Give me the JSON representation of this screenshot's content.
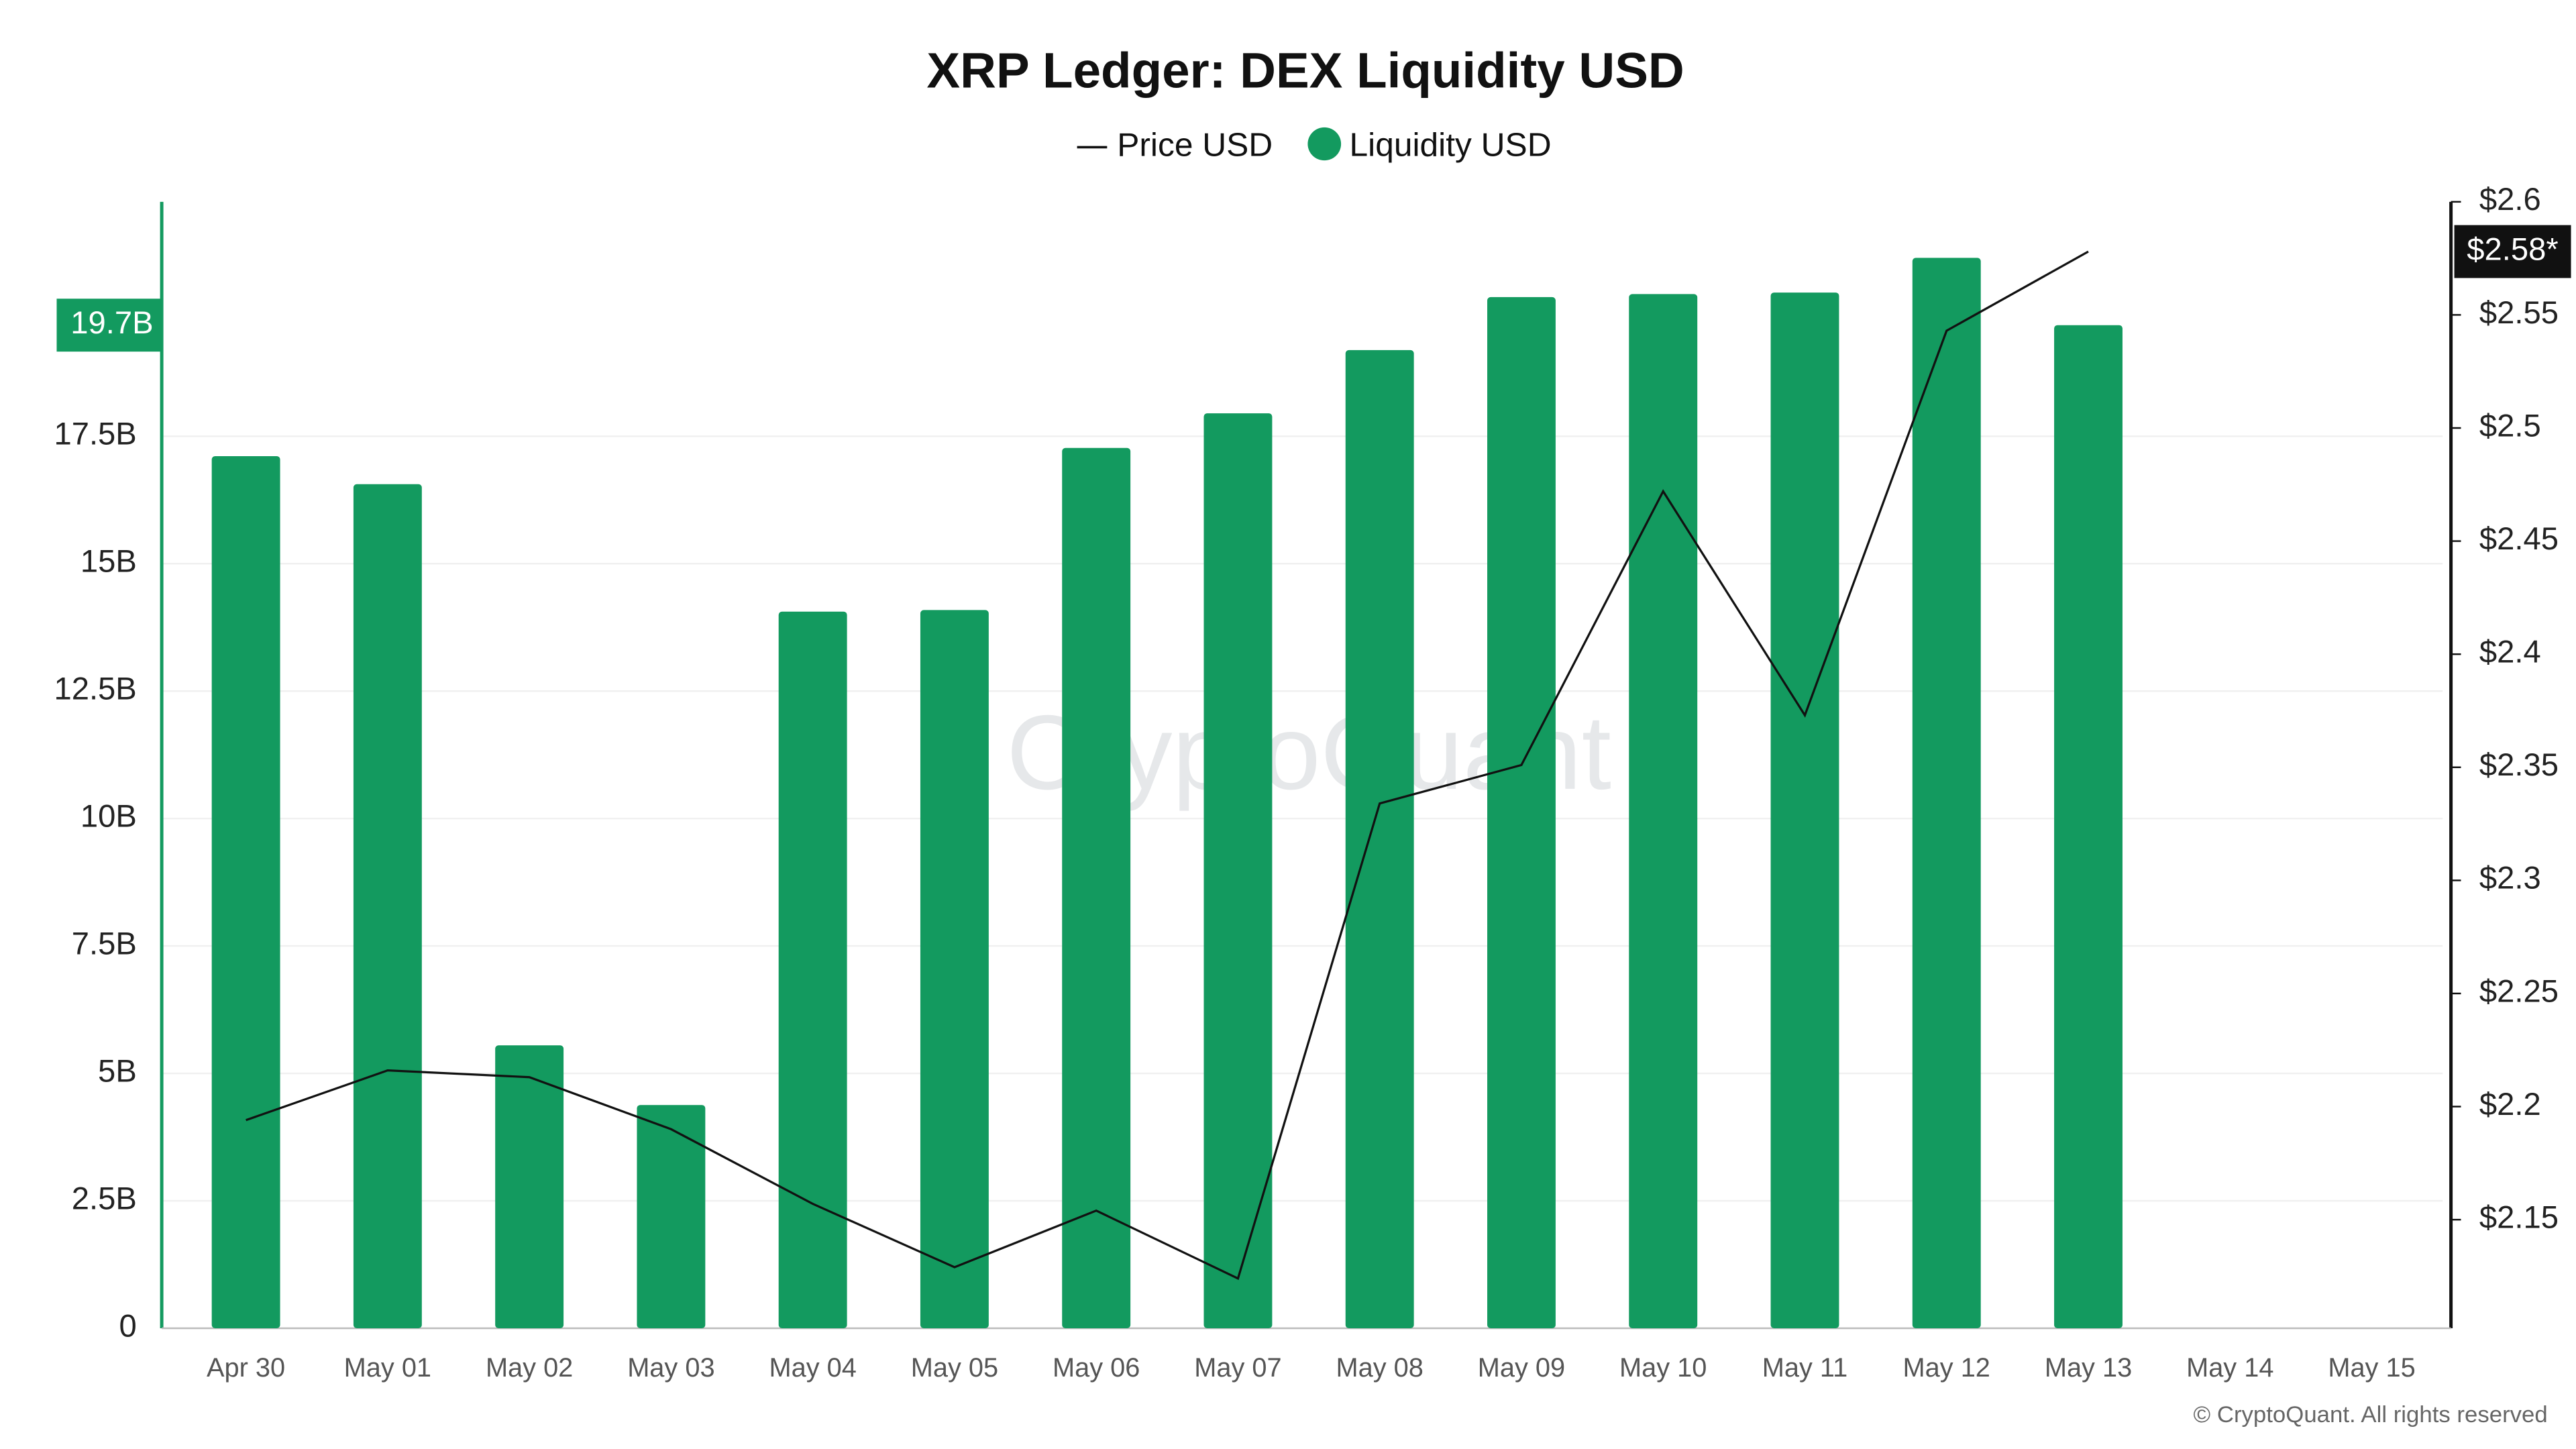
{
  "chart_data": {
    "type": "bar_line",
    "title": "XRP Ledger: DEX Liquidity USD",
    "watermark": "CryptoQuant",
    "footer": "© CryptoQuant. All rights reserved",
    "categories": [
      "Apr 30",
      "May 01",
      "May 02",
      "May 03",
      "May 04",
      "May 05",
      "May 06",
      "May 07",
      "May 08",
      "May 09",
      "May 10",
      "May 11",
      "May 12",
      "May 13",
      "May 14",
      "May 15"
    ],
    "series": [
      {
        "name": "Price USD",
        "type": "line",
        "axis": "y2",
        "color": "#111111",
        "values": [
          2.194,
          2.216,
          2.213,
          2.19,
          2.157,
          2.129,
          2.154,
          2.124,
          2.334,
          2.351,
          2.472,
          2.373,
          2.543,
          2.578,
          null,
          null
        ],
        "value_labels": [
          null,
          null,
          null,
          null,
          null,
          null,
          null,
          null,
          null,
          null,
          null,
          null,
          null,
          "$2.58*",
          null,
          null
        ]
      },
      {
        "name": "Liquidity USD",
        "type": "bar",
        "color": "#139a5f",
        "values": [
          17.11,
          16.56,
          5.55,
          4.38,
          14.06,
          14.09,
          17.27,
          17.95,
          19.19,
          20.23,
          20.29,
          20.32,
          21.0,
          19.68,
          null,
          null
        ],
        "value_labels": [
          null,
          null,
          null,
          null,
          null,
          null,
          null,
          null,
          null,
          null,
          null,
          null,
          null,
          "19.7B",
          null,
          null
        ]
      }
    ],
    "ylim": [
      0,
      22.1
    ],
    "yticks": [
      0,
      {
        "value": 2.5,
        "label": "2.5B"
      },
      {
        "value": 5,
        "label": "5B"
      },
      {
        "value": 7.5,
        "label": "7.5B"
      },
      {
        "value": 10,
        "label": "10B"
      },
      {
        "value": 12.5,
        "label": "12.5B"
      },
      {
        "value": 15,
        "label": "15B"
      },
      {
        "value": 17.5,
        "label": "17.5B"
      }
    ],
    "y2lim": [
      2.102,
      2.6
    ],
    "y2ticks": [
      {
        "value": 2.15,
        "label": "$2.15"
      },
      {
        "value": 2.2,
        "label": "$2.2"
      },
      {
        "value": 2.25,
        "label": "$2.25"
      },
      {
        "value": 2.3,
        "label": "$2.3"
      },
      {
        "value": 2.35,
        "label": "$2.35"
      },
      {
        "value": 2.4,
        "label": "$2.4"
      },
      {
        "value": 2.45,
        "label": "$2.45"
      },
      {
        "value": 2.5,
        "label": "$2.5"
      },
      {
        "value": 2.55,
        "label": "$2.55"
      },
      {
        "value": 2.6,
        "label": "$2.6"
      }
    ],
    "grid": true
  }
}
